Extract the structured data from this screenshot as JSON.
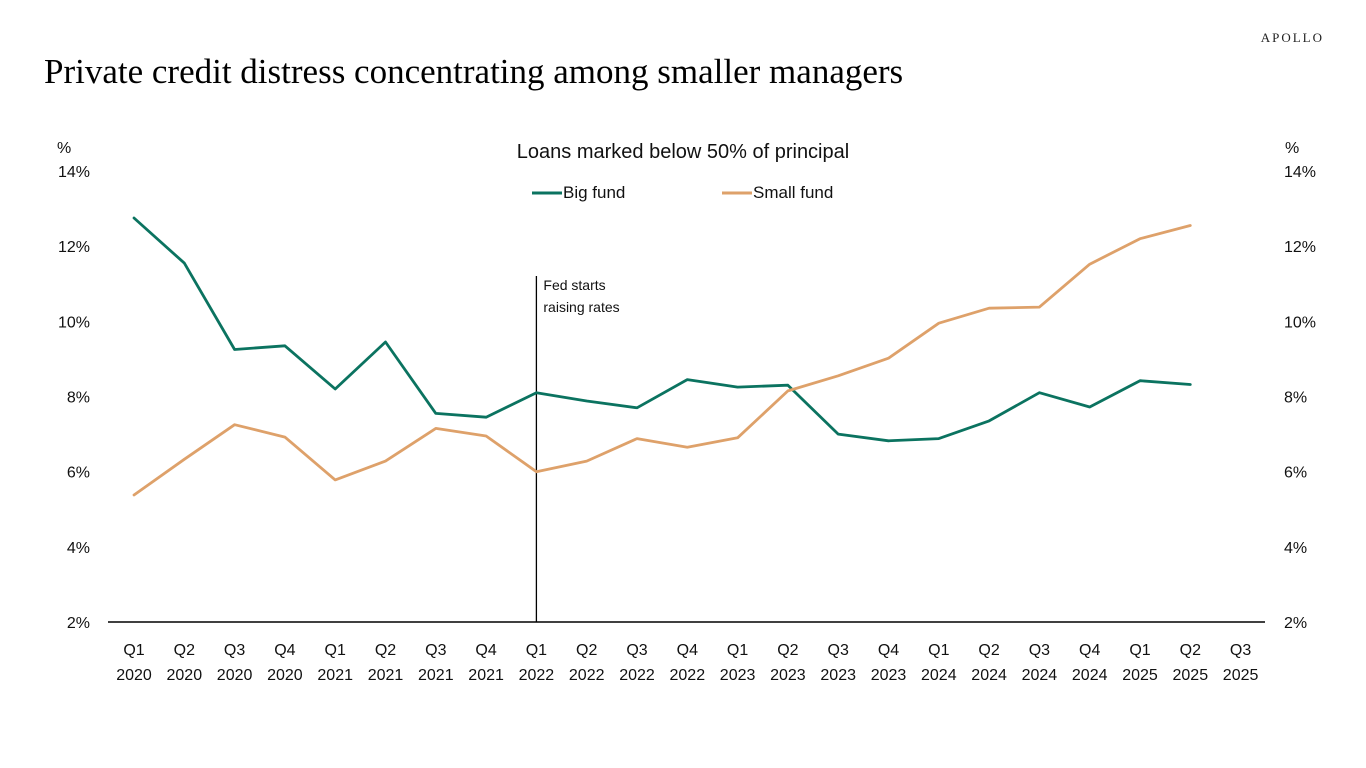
{
  "header": {
    "brand": "APOLLO",
    "title": "Private credit distress concentrating among smaller managers"
  },
  "colors": {
    "big_fund": "#0b7360",
    "small_fund": "#dea16a",
    "axis": "#000000",
    "annotation_line": "#000000"
  },
  "chart_data": {
    "type": "line",
    "title": "Loans marked below 50% of principal",
    "xlabel": "",
    "ylabel_left": "%",
    "ylabel_right": "%",
    "ylim": [
      2,
      14
    ],
    "yticks": [
      "2%",
      "4%",
      "6%",
      "8%",
      "10%",
      "12%",
      "14%"
    ],
    "ytick_values": [
      2,
      4,
      6,
      8,
      10,
      12,
      14
    ],
    "grid": false,
    "legend_position": "top-center",
    "categories": [
      [
        "Q1",
        "2020"
      ],
      [
        "Q2",
        "2020"
      ],
      [
        "Q3",
        "2020"
      ],
      [
        "Q4",
        "2020"
      ],
      [
        "Q1",
        "2021"
      ],
      [
        "Q2",
        "2021"
      ],
      [
        "Q3",
        "2021"
      ],
      [
        "Q4",
        "2021"
      ],
      [
        "Q1",
        "2022"
      ],
      [
        "Q2",
        "2022"
      ],
      [
        "Q3",
        "2022"
      ],
      [
        "Q4",
        "2022"
      ],
      [
        "Q1",
        "2023"
      ],
      [
        "Q2",
        "2023"
      ],
      [
        "Q3",
        "2023"
      ],
      [
        "Q4",
        "2023"
      ],
      [
        "Q1",
        "2024"
      ],
      [
        "Q2",
        "2024"
      ],
      [
        "Q3",
        "2024"
      ],
      [
        "Q4",
        "2024"
      ],
      [
        "Q1",
        "2025"
      ],
      [
        "Q2",
        "2025"
      ],
      [
        "Q3",
        "2025"
      ]
    ],
    "series": [
      {
        "name": "Big fund",
        "color": "#0b7360",
        "values": [
          12.75,
          11.55,
          9.25,
          9.35,
          8.2,
          9.45,
          7.55,
          7.45,
          8.1,
          7.88,
          7.7,
          8.45,
          8.25,
          8.3,
          7.0,
          6.82,
          6.88,
          7.35,
          8.1,
          7.72,
          8.42,
          8.32,
          null
        ]
      },
      {
        "name": "Small fund",
        "color": "#dea16a",
        "values": [
          5.38,
          6.33,
          7.25,
          6.92,
          5.78,
          6.28,
          7.15,
          6.95,
          6.0,
          6.28,
          6.88,
          6.65,
          6.9,
          8.15,
          8.55,
          9.02,
          9.95,
          10.35,
          10.38,
          11.52,
          12.2,
          12.55,
          null
        ]
      }
    ],
    "annotations": [
      {
        "category_index": 8,
        "text_lines": [
          "Fed starts",
          "raising rates"
        ]
      }
    ]
  }
}
